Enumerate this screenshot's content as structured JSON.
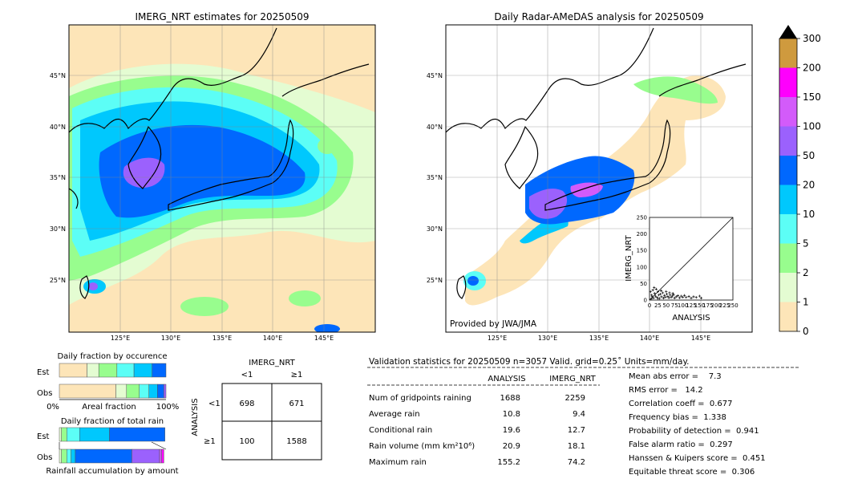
{
  "colors": {
    "land": "#000000",
    "c0": "#fde5b8",
    "c1": "#e4fcd2",
    "c2": "#98fd8e",
    "c5": "#5cfef6",
    "c10": "#00c8fd",
    "c20": "#0068fe",
    "c50": "#9b61fd",
    "c100": "#d35bfa",
    "c150": "#fe00fd",
    "c200": "#cf9a3e",
    "c300": "#000000"
  },
  "left_map": {
    "title": "IMERG_NRT estimates for 20250509",
    "lat_labels": [
      "45°N",
      "40°N",
      "35°N",
      "30°N",
      "25°N"
    ],
    "lon_labels": [
      "125°E",
      "130°E",
      "135°E",
      "140°E",
      "145°E"
    ]
  },
  "right_map": {
    "title": "Daily Radar-AMeDAS analysis for 20250509",
    "lat_labels": [
      "45°N",
      "40°N",
      "35°N",
      "30°N",
      "25°N"
    ],
    "lon_labels": [
      "125°E",
      "130°E",
      "135°E",
      "140°E",
      "145°E"
    ],
    "credit": "Provided by JWA/JMA"
  },
  "colorbar": {
    "ticks": [
      "0",
      "1",
      "2",
      "5",
      "10",
      "20",
      "50",
      "100",
      "150",
      "200",
      "300"
    ]
  },
  "chart_data": [
    {
      "type": "scatter",
      "title": "",
      "xlabel": "ANALYSIS",
      "ylabel": "IMERG_NRT",
      "xlim": [
        0,
        250
      ],
      "ylim": [
        0,
        250
      ],
      "xticks": [
        "0",
        "25",
        "50",
        "75",
        "100",
        "125",
        "150",
        "175",
        "200",
        "225",
        "250"
      ],
      "yticks": [
        "0",
        "50",
        "100",
        "150",
        "200",
        "250"
      ],
      "points": [
        [
          5,
          3
        ],
        [
          8,
          10
        ],
        [
          12,
          6
        ],
        [
          15,
          20
        ],
        [
          18,
          12
        ],
        [
          22,
          8
        ],
        [
          25,
          25
        ],
        [
          28,
          15
        ],
        [
          30,
          5
        ],
        [
          33,
          18
        ],
        [
          36,
          10
        ],
        [
          40,
          22
        ],
        [
          42,
          6
        ],
        [
          45,
          14
        ],
        [
          48,
          9
        ],
        [
          52,
          18
        ],
        [
          55,
          11
        ],
        [
          58,
          7
        ],
        [
          62,
          15
        ],
        [
          65,
          8
        ],
        [
          68,
          12
        ],
        [
          72,
          16
        ],
        [
          75,
          6
        ],
        [
          80,
          10
        ],
        [
          85,
          13
        ],
        [
          90,
          7
        ],
        [
          95,
          12
        ],
        [
          100,
          9
        ],
        [
          105,
          14
        ],
        [
          110,
          8
        ],
        [
          118,
          11
        ],
        [
          125,
          6
        ],
        [
          132,
          10
        ],
        [
          140,
          8
        ],
        [
          150,
          12
        ],
        [
          155,
          6
        ],
        [
          10,
          30
        ],
        [
          20,
          33
        ],
        [
          14,
          38
        ],
        [
          6,
          15
        ],
        [
          3,
          25
        ],
        [
          25,
          5
        ],
        [
          35,
          28
        ],
        [
          50,
          26
        ],
        [
          60,
          22
        ],
        [
          70,
          20
        ]
      ]
    },
    {
      "type": "bar",
      "title": "Daily fraction by occurence",
      "row_labels": [
        "Est",
        "Obs"
      ],
      "xlabel": "Areal fraction",
      "xtick_left": "0%",
      "xtick_right": "100%",
      "series": [
        {
          "name": "Est",
          "segments": [
            {
              "level": "c0",
              "value": 0.26
            },
            {
              "level": "c1",
              "value": 0.11
            },
            {
              "level": "c2",
              "value": 0.17
            },
            {
              "level": "c5",
              "value": 0.16
            },
            {
              "level": "c10",
              "value": 0.17
            },
            {
              "level": "c20",
              "value": 0.13
            }
          ]
        },
        {
          "name": "Obs",
          "segments": [
            {
              "level": "c0",
              "value": 0.53
            },
            {
              "level": "c1",
              "value": 0.1
            },
            {
              "level": "c2",
              "value": 0.12
            },
            {
              "level": "c5",
              "value": 0.09
            },
            {
              "level": "c10",
              "value": 0.08
            },
            {
              "level": "c20",
              "value": 0.06
            },
            {
              "level": "c50",
              "value": 0.02
            }
          ]
        }
      ]
    },
    {
      "type": "bar",
      "title": "Daily fraction of total rain",
      "row_labels": [
        "Est",
        "Obs"
      ],
      "xlabel": "Rainfall accumulation by amount",
      "series": [
        {
          "name": "Est",
          "segments": [
            {
              "level": "c1",
              "value": 0.02
            },
            {
              "level": "c2",
              "value": 0.05
            },
            {
              "level": "c5",
              "value": 0.12
            },
            {
              "level": "c10",
              "value": 0.28
            },
            {
              "level": "c20",
              "value": 0.52
            }
          ]
        },
        {
          "name": "Obs",
          "segments": [
            {
              "level": "c1",
              "value": 0.02
            },
            {
              "level": "c2",
              "value": 0.05
            },
            {
              "level": "c5",
              "value": 0.04
            },
            {
              "level": "c10",
              "value": 0.04
            },
            {
              "level": "c20",
              "value": 0.53
            },
            {
              "level": "c50",
              "value": 0.26
            },
            {
              "level": "c100",
              "value": 0.02
            },
            {
              "level": "c150",
              "value": 0.02
            }
          ]
        }
      ]
    },
    {
      "type": "table",
      "title": "IMERG_NRT",
      "col_labels": [
        "<1",
        "≥1"
      ],
      "row_title": "ANALYSIS",
      "row_labels": [
        "<1",
        "≥1"
      ],
      "cells": [
        [
          "698",
          "671"
        ],
        [
          "100",
          "1588"
        ]
      ]
    }
  ],
  "stats": {
    "header": "Validation statistics for 20250509  n=3057 Valid. grid=0.25˚ Units=mm/day.",
    "col_analysis": "ANALYSIS",
    "col_imerg": "IMERG_NRT",
    "rows": [
      {
        "label": "Num of gridpoints raining",
        "analysis": "1688",
        "imerg": "2259"
      },
      {
        "label": "Average rain",
        "analysis": "10.8",
        "imerg": "9.4"
      },
      {
        "label": "Conditional rain",
        "analysis": "19.6",
        "imerg": "12.7"
      },
      {
        "label": "Rain volume (mm km²10⁶)",
        "analysis": "20.9",
        "imerg": "18.1"
      },
      {
        "label": "Maximum rain",
        "analysis": "155.2",
        "imerg": "74.2"
      }
    ],
    "scores": [
      "Mean abs error =    7.3",
      "RMS error =   14.2",
      "Correlation coeff =  0.677",
      "Frequency bias =  1.338",
      "Probability of detection =  0.941",
      "False alarm ratio =  0.297",
      "Hanssen & Kuipers score =  0.451",
      "Equitable threat score =  0.306"
    ]
  }
}
